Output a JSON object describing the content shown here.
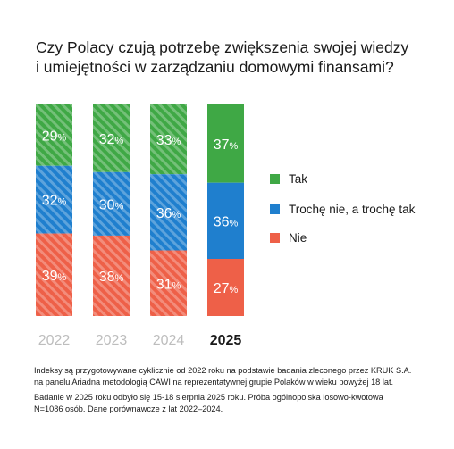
{
  "title_line1": "Czy Polacy czują potrzebę zwiększenia swojej wiedzy",
  "title_line2": "i umiejętności w zarządzaniu domowymi finansami?",
  "chart_data": {
    "type": "bar",
    "stacked": true,
    "categories": [
      "2022",
      "2023",
      "2024",
      "2025"
    ],
    "series": [
      {
        "name": "Tak",
        "values": [
          29,
          32,
          33,
          37
        ],
        "color": "#3fa845"
      },
      {
        "name": "Trochę nie, a trochę tak",
        "values": [
          32,
          30,
          36,
          36
        ],
        "color": "#1f7fce"
      },
      {
        "name": "Nie",
        "values": [
          39,
          38,
          31,
          27
        ],
        "color": "#ee6048"
      }
    ],
    "value_suffix": "%",
    "ylim": [
      0,
      100
    ],
    "highlight_category": "2025",
    "legend_position": "right"
  },
  "legend": {
    "items": [
      {
        "label": "Tak",
        "color": "#3fa845"
      },
      {
        "label": "Trochę nie, a trochę tak",
        "color": "#1f7fce"
      },
      {
        "label": "Nie",
        "color": "#ee6048"
      }
    ]
  },
  "notes": {
    "line1": "Indeksy są przygotowywane cyklicznie od 2022 roku na podstawie badania zleconego przez KRUK S.A.",
    "line2": "na panelu Ariadna metodologią CAWI na reprezentatywnej grupie Polaków w wieku powyżej 18 lat.",
    "line3": "Badanie w 2025 roku odbyło się 15-18 sierpnia 2025 roku. Próba ogólnopolska losowo-kwotowa",
    "line4": "N=1086 osób. Dane porównawcze z lat 2022–2024."
  },
  "colors": {
    "year_faded": "#bdbdbd",
    "year_highlight": "#1a1a1a",
    "label_text": "#ffffff"
  }
}
